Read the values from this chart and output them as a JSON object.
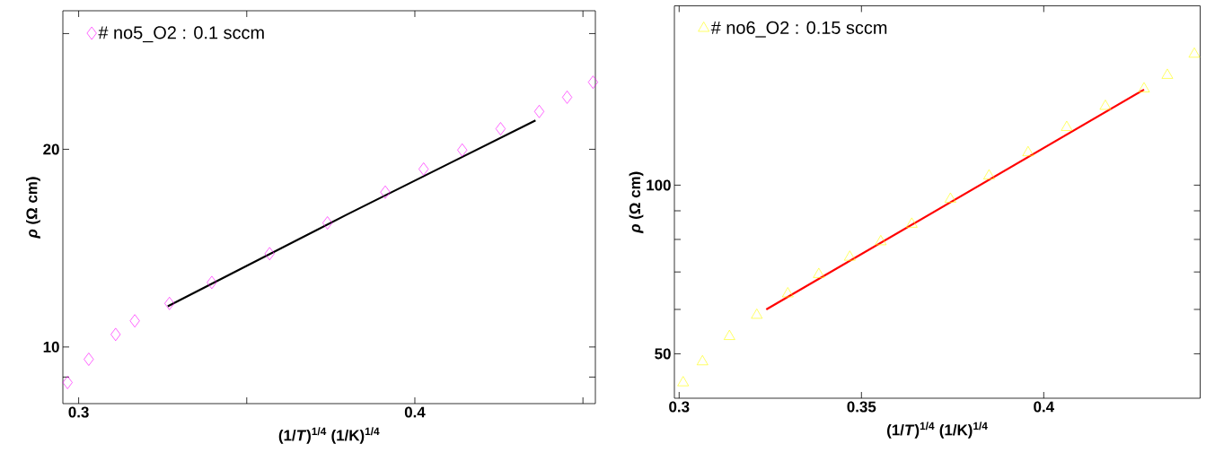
{
  "chart_data": [
    {
      "type": "scatter",
      "xlabel": "(1/*T*)$^{1/4}$ (1/K)$^{1/4}$",
      "ylabel": "*ρ* (Ω cm)",
      "log": "y",
      "xlim": [
        0.2953,
        0.4537
      ],
      "ylim": [
        8.2,
        32.5
      ],
      "xticks": [
        0.3,
        {
          "value": 0.35,
          "label": null
        },
        0.4,
        {
          "value": 0.45,
          "label": null
        }
      ],
      "yticks": [
        {
          "value": 9,
          "label": null
        },
        10,
        20,
        {
          "value": 30,
          "label": null
        }
      ],
      "legend": "top left",
      "series": [
        {
          "name": "# no5_O2 : 0.1 sccm",
          "color": "#ff00ff",
          "marker": "diamond",
          "x": [
            0.2967,
            0.303,
            0.311,
            0.3167,
            0.327,
            0.3396,
            0.3568,
            0.374,
            0.3912,
            0.4026,
            0.4141,
            0.4255,
            0.437,
            0.4453,
            0.453
          ],
          "values": [
            8.83,
            9.58,
            10.45,
            10.96,
            11.65,
            12.54,
            13.87,
            15.45,
            17.21,
            18.66,
            19.95,
            21.49,
            22.83,
            24.0,
            25.3
          ]
        },
        {
          "type": "line",
          "color": "#000000",
          "marker": "none",
          "x": [
            0.3265,
            0.3797,
            0.4359
          ],
          "values": [
            11.53,
            15.9,
            22.13
          ]
        }
      ]
    },
    {
      "type": "scatter",
      "xlabel": "(1/*T*)$^{1/4}$ (1/K)$^{1/4}$",
      "ylabel": "*ρ* (Ω cm)",
      "log": "y",
      "xlim": [
        0.2987,
        0.4429
      ],
      "ylim": [
        41.65,
        209
      ],
      "xticks": [
        0.3,
        0.35,
        0.4
      ],
      "yticks": [
        50,
        {
          "value": 60,
          "label": null
        },
        {
          "value": 70,
          "label": null
        },
        {
          "value": 80,
          "label": null
        },
        {
          "value": 90,
          "label": null
        },
        100
      ],
      "legend": "top left",
      "series": [
        {
          "name": "# no6_O2 : 0.15 sccm",
          "color": "#ffff00",
          "marker": "triangle",
          "x": [
            0.3011,
            0.3064,
            0.3138,
            0.3213,
            0.3298,
            0.3383,
            0.3468,
            0.3553,
            0.3638,
            0.3744,
            0.385,
            0.3957,
            0.4063,
            0.4169,
            0.4275,
            0.4339,
            0.4413
          ],
          "values": [
            44.4,
            48.4,
            53.7,
            58.6,
            64.0,
            69.3,
            74.4,
            79.3,
            85.2,
            94.4,
            103.9,
            114.3,
            126.8,
            138.3,
            148.6,
            157.1,
            171.4
          ]
        },
        {
          "type": "line",
          "color": "#ff0000",
          "marker": "none",
          "x": [
            0.3239,
            0.4275
          ],
          "values": [
            60.0,
            148.1
          ]
        }
      ]
    }
  ]
}
